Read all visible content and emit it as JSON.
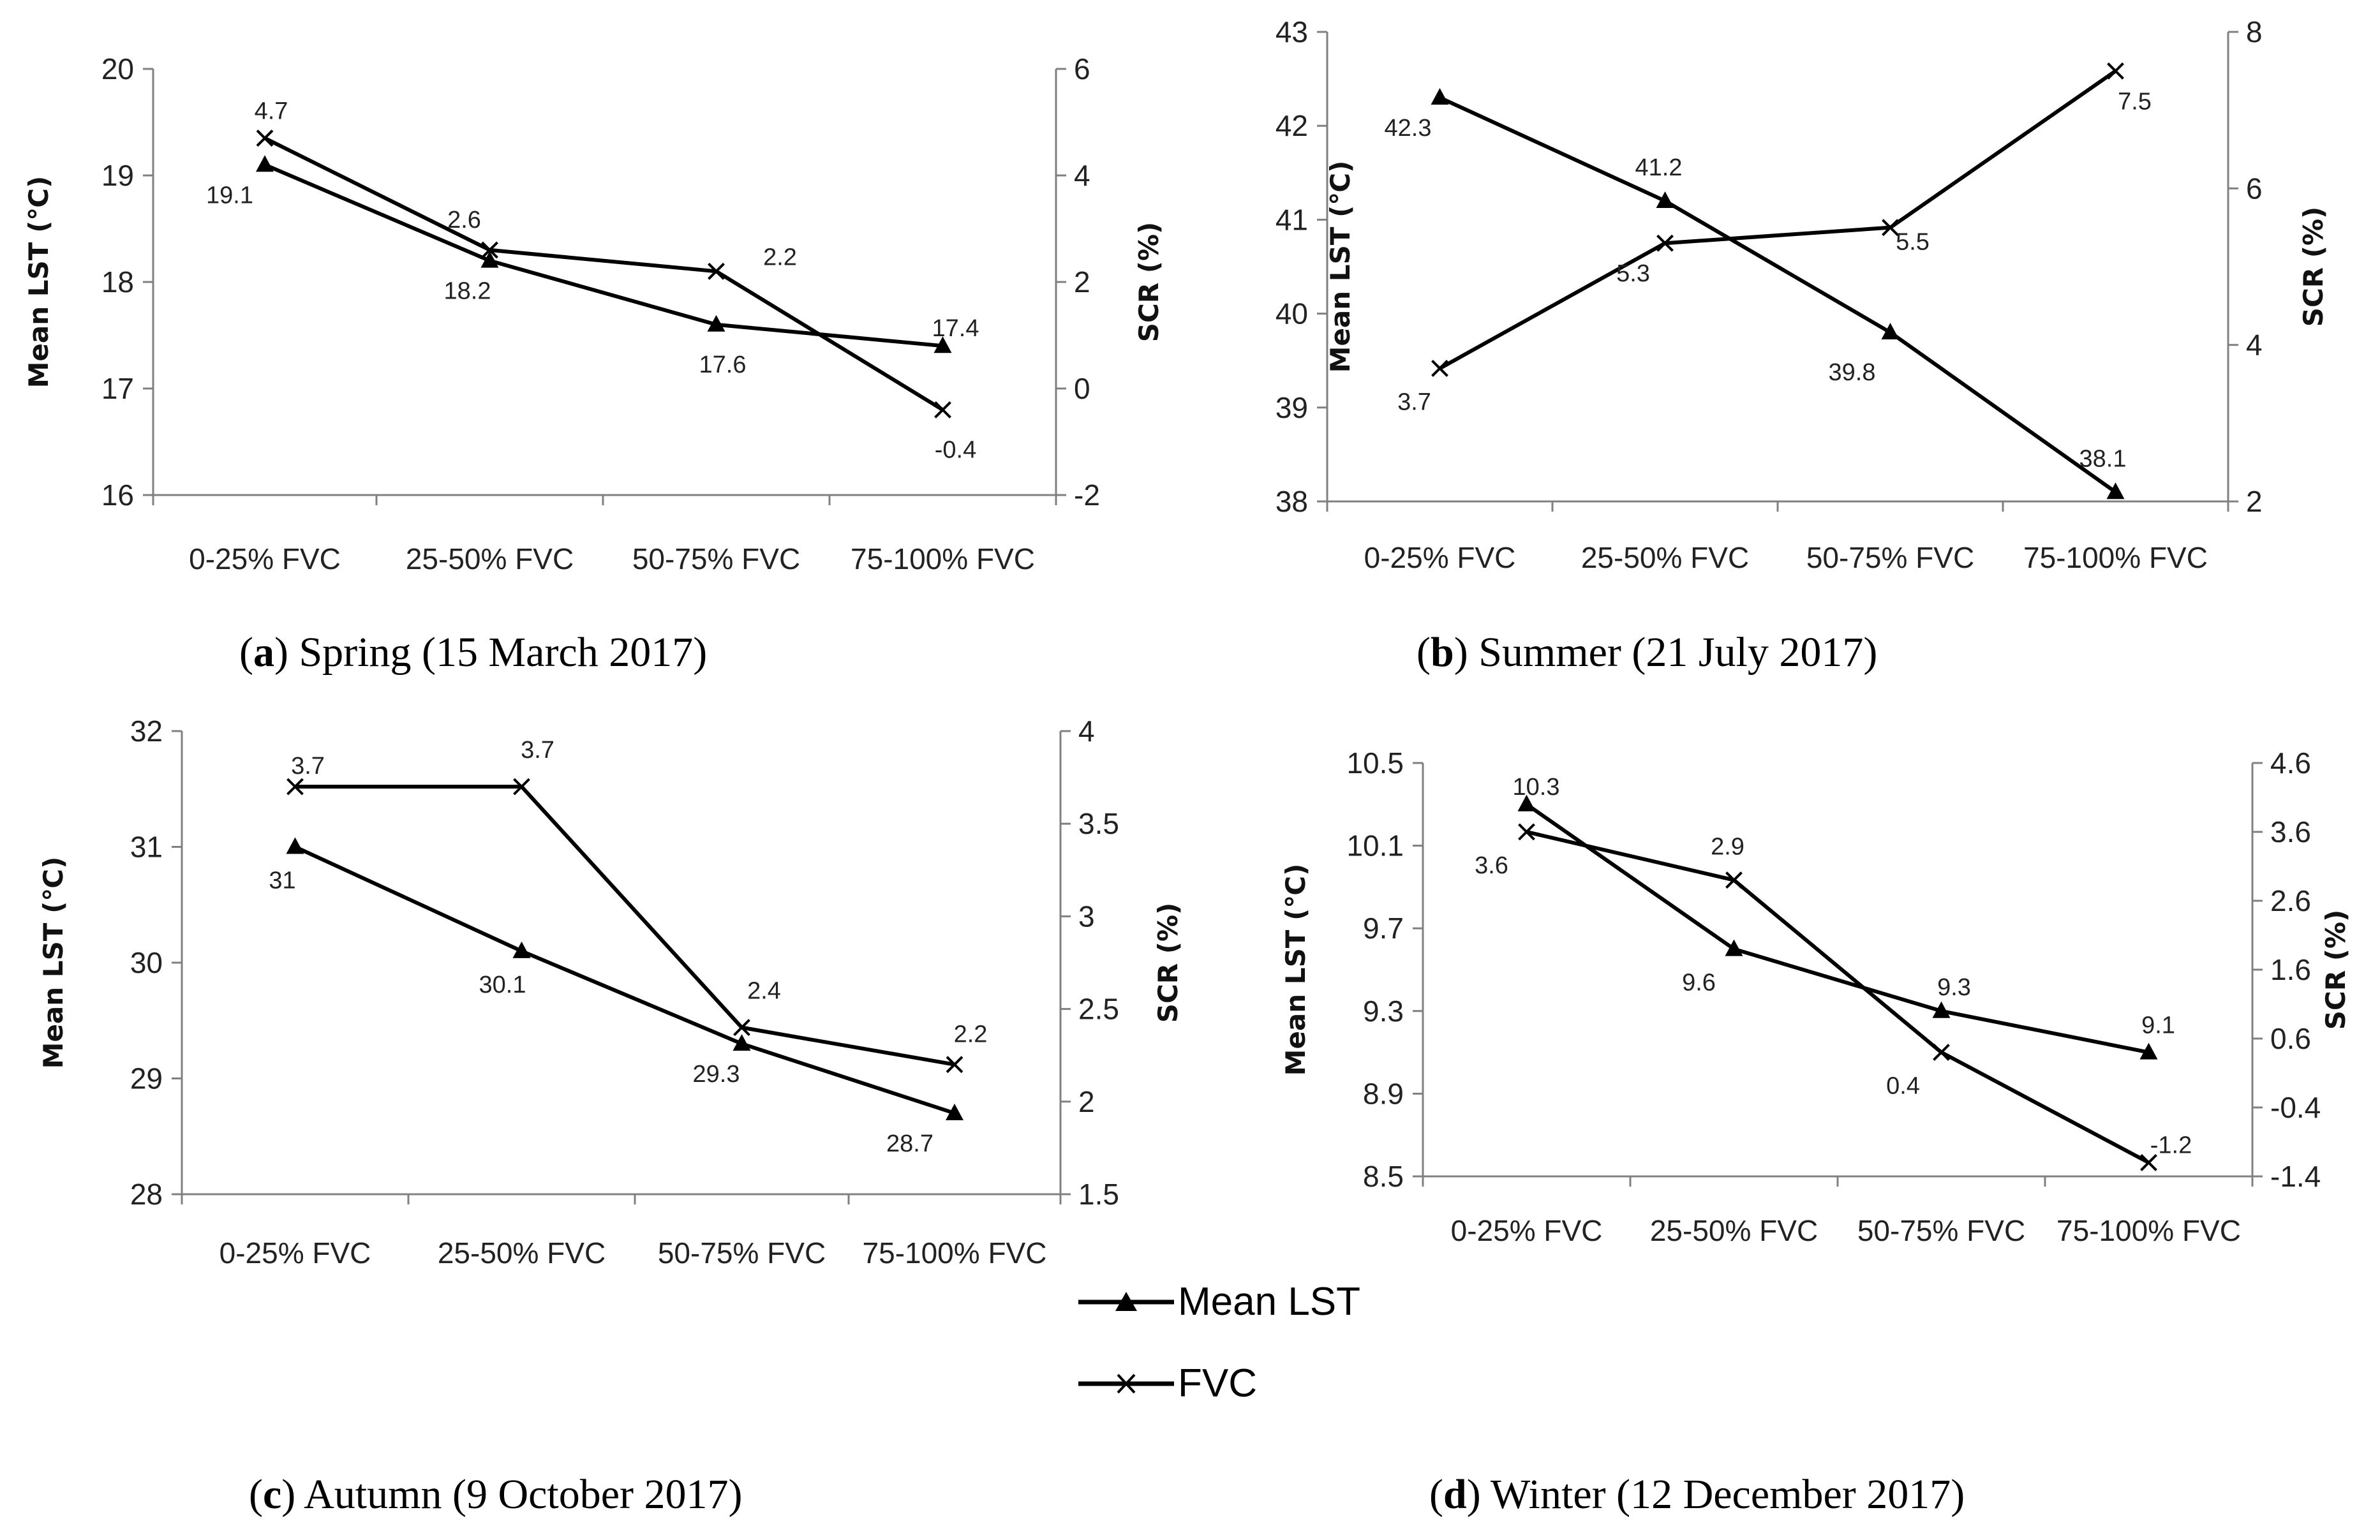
{
  "series_names": [
    "Mean LST",
    "FVC"
  ],
  "chart_data": [
    {
      "type": "line",
      "caption_letter": "a",
      "caption_text": " Spring (15 March 2017)",
      "categories": [
        "0-25% FVC",
        "25-50% FVC",
        "50-75% FVC",
        "75-100% FVC"
      ],
      "ylabel": "Mean LST (℃)",
      "y2label": "SCR (%)",
      "ylim": [
        16,
        20
      ],
      "yticks": [
        "20",
        "19",
        "18",
        "17",
        "16"
      ],
      "y2lim": [
        -2,
        6
      ],
      "y2ticks": [
        "6",
        "4",
        "2",
        "0",
        "-2"
      ],
      "series": [
        {
          "name": "Mean LST",
          "axis": "left",
          "values": [
            19.1,
            18.2,
            17.6,
            17.4
          ],
          "labels": [
            "19.1",
            "18.2",
            "17.6",
            "17.4"
          ]
        },
        {
          "name": "FVC",
          "axis": "right",
          "values": [
            4.7,
            2.6,
            2.2,
            -0.4
          ],
          "labels": [
            "4.7",
            "2.6",
            "2.2",
            "-0.4"
          ]
        }
      ]
    },
    {
      "type": "line",
      "caption_letter": "b",
      "caption_text": " Summer (21 July 2017)",
      "categories": [
        "0-25% FVC",
        "25-50% FVC",
        "50-75% FVC",
        "75-100% FVC"
      ],
      "ylabel": "Mean LST (℃)",
      "y2label": "SCR (%)",
      "ylim": [
        38,
        43
      ],
      "yticks": [
        "43",
        "42",
        "41",
        "40",
        "39",
        "38"
      ],
      "y2lim": [
        2,
        8
      ],
      "y2ticks": [
        "8",
        "6",
        "4",
        "2"
      ],
      "series": [
        {
          "name": "Mean LST",
          "axis": "left",
          "values": [
            42.3,
            41.2,
            39.8,
            38.1
          ],
          "labels": [
            "42.3",
            "41.2",
            "39.8",
            "38.1"
          ]
        },
        {
          "name": "FVC",
          "axis": "right",
          "values": [
            3.7,
            5.3,
            5.5,
            7.5
          ],
          "labels": [
            "3.7",
            "5.3",
            "5.5",
            "7.5"
          ]
        }
      ]
    },
    {
      "type": "line",
      "caption_letter": "c",
      "caption_text": " Autumn (9 October 2017)",
      "categories": [
        "0-25% FVC",
        "25-50% FVC",
        "50-75% FVC",
        "75-100% FVC"
      ],
      "ylabel": "Mean LST (℃)",
      "y2label": "SCR (%)",
      "ylim": [
        28,
        32
      ],
      "yticks": [
        "32",
        "31",
        "30",
        "29",
        "28"
      ],
      "y2lim": [
        1.5,
        4
      ],
      "y2ticks": [
        "4",
        "3.5",
        "3",
        "2.5",
        "2",
        "1.5"
      ],
      "series": [
        {
          "name": "Mean LST",
          "axis": "left",
          "values": [
            31,
            30.1,
            29.3,
            28.7
          ],
          "labels": [
            "31",
            "30.1",
            "29.3",
            "28.7"
          ]
        },
        {
          "name": "FVC",
          "axis": "right",
          "values": [
            3.7,
            3.7,
            2.4,
            2.2
          ],
          "labels": [
            "3.7",
            "3.7",
            "2.4",
            "2.2"
          ]
        }
      ]
    },
    {
      "type": "line",
      "caption_letter": "d",
      "caption_text": " Winter (12 December 2017)",
      "categories": [
        "0-25% FVC",
        "25-50% FVC",
        "50-75% FVC",
        "75-100% FVC"
      ],
      "ylabel": "Mean LST (℃)",
      "y2label": "SCR (%)",
      "ylim": [
        8.5,
        10.5
      ],
      "yticks": [
        "10.5",
        "10.1",
        "9.7",
        "9.3",
        "8.9",
        "8.5"
      ],
      "y2lim": [
        -1.4,
        4.6
      ],
      "y2ticks": [
        "4.6",
        "3.6",
        "2.6",
        "1.6",
        "0.6",
        "-0.4",
        "-1.4"
      ],
      "series": [
        {
          "name": "Mean LST",
          "axis": "left",
          "values": [
            10.3,
            9.6,
            9.3,
            9.1
          ],
          "labels": [
            "10.3",
            "9.6",
            "9.3",
            "9.1"
          ]
        },
        {
          "name": "FVC",
          "axis": "right",
          "values": [
            3.6,
            2.9,
            0.4,
            -1.2
          ],
          "labels": [
            "3.6",
            "2.9",
            "0.4",
            "-1.2"
          ]
        }
      ]
    }
  ]
}
